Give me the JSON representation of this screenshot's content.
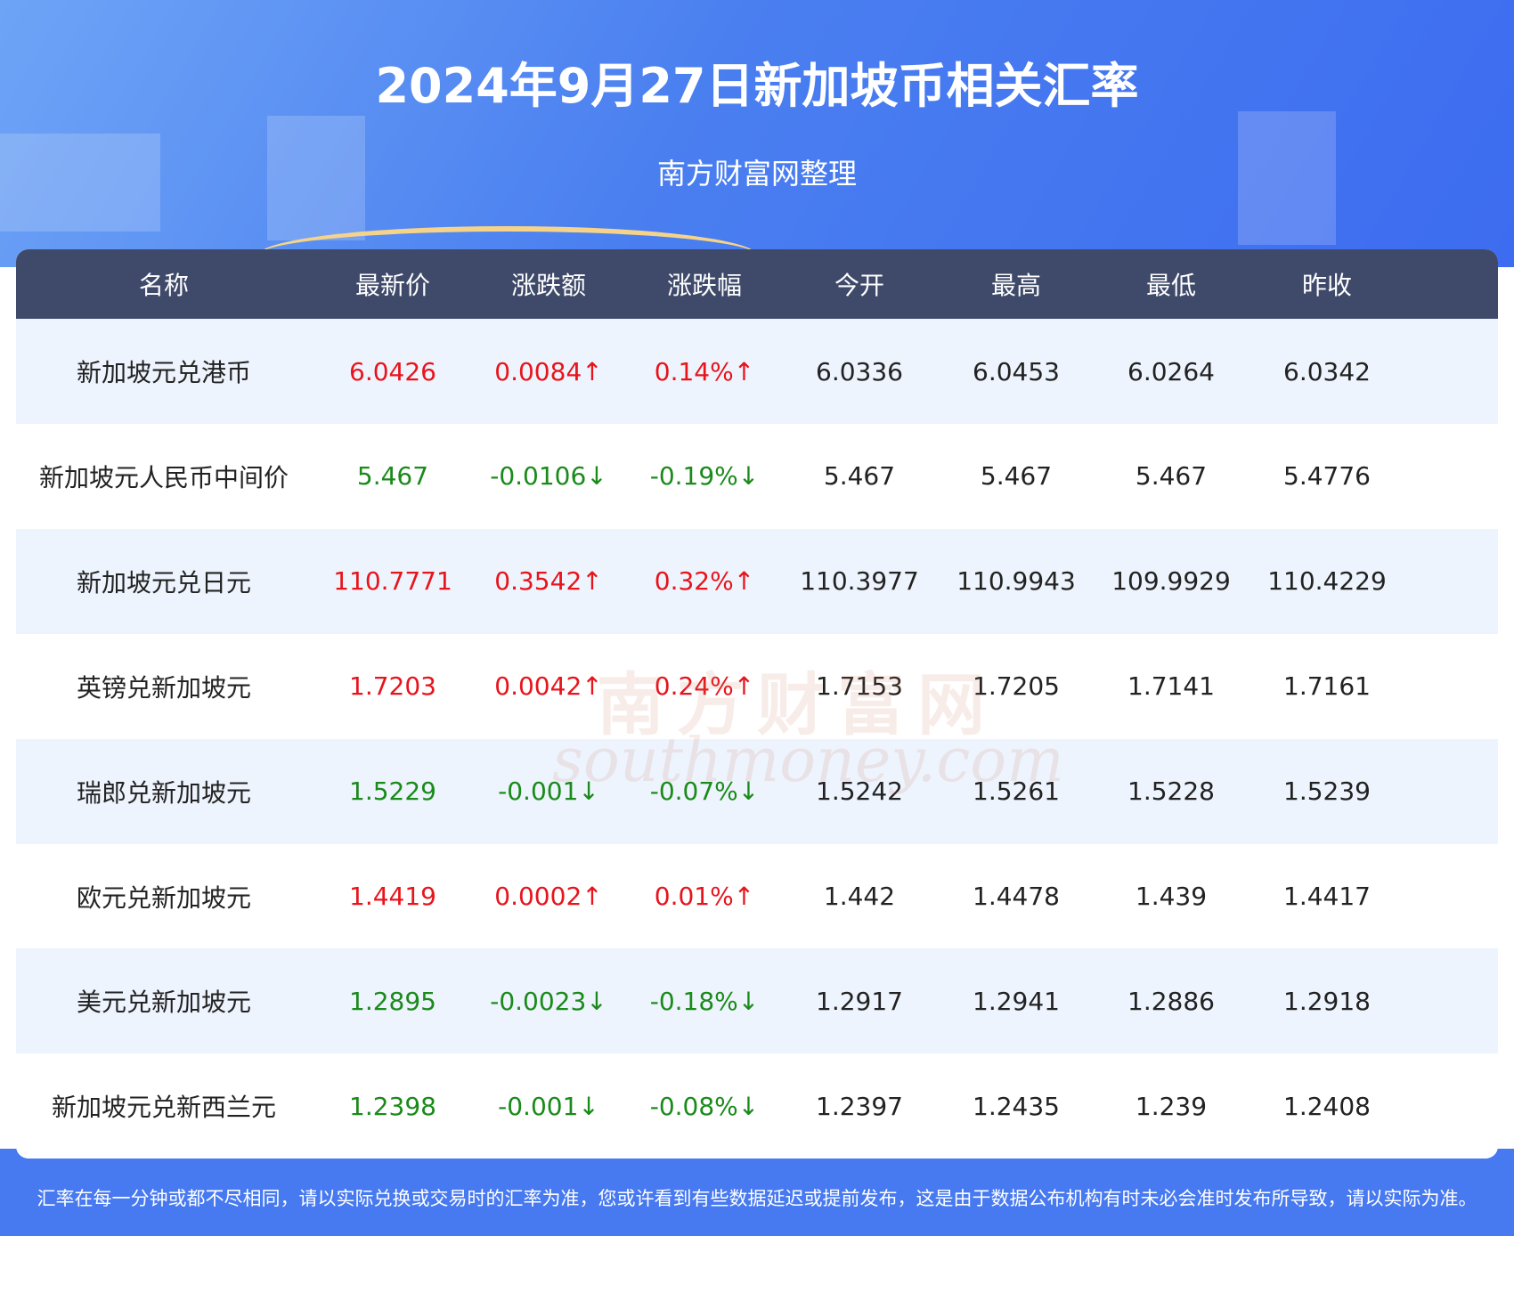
{
  "header": {
    "title": "2024年9月27日新加坡币相关汇率",
    "subtitle": "南方财富网整理"
  },
  "table": {
    "columns": [
      "名称",
      "最新价",
      "涨跌额",
      "涨跌幅",
      "今开",
      "最高",
      "最低",
      "昨收"
    ],
    "rows": [
      [
        "新加坡元兑港币",
        "6.0426",
        "0.0084↑",
        "0.14%↑",
        "6.0336",
        "6.0453",
        "6.0264",
        "6.0342"
      ],
      [
        "新加坡元人民币中间价",
        "5.467",
        "-0.0106↓",
        "-0.19%↓",
        "5.467",
        "5.467",
        "5.467",
        "5.4776"
      ],
      [
        "新加坡元兑日元",
        "110.7771",
        "0.3542↑",
        "0.32%↑",
        "110.3977",
        "110.9943",
        "109.9929",
        "110.4229"
      ],
      [
        "英镑兑新加坡元",
        "1.7203",
        "0.0042↑",
        "0.24%↑",
        "1.7153",
        "1.7205",
        "1.7141",
        "1.7161"
      ],
      [
        "瑞郎兑新加坡元",
        "1.5229",
        "-0.001↓",
        "-0.07%↓",
        "1.5242",
        "1.5261",
        "1.5228",
        "1.5239"
      ],
      [
        "欧元兑新加坡元",
        "1.4419",
        "0.0002↑",
        "0.01%↑",
        "1.442",
        "1.4478",
        "1.439",
        "1.4417"
      ],
      [
        "美元兑新加坡元",
        "1.2895",
        "-0.0023↓",
        "-0.18%↓",
        "1.2917",
        "1.2941",
        "1.2886",
        "1.2918"
      ],
      [
        "新加坡元兑新西兰元",
        "1.2398",
        "-0.001↓",
        "-0.08%↓",
        "1.2397",
        "1.2435",
        "1.239",
        "1.2408"
      ]
    ]
  },
  "watermark": {
    "brand": "南方财富网",
    "domain": "southmoney.com"
  },
  "footer": {
    "note": "汇率在每一分钟或都不尽相同，请以实际兑换或交易时的汇率为准，您或许看到有些数据延迟或提前发布，这是由于数据公布机构有时未必会准时发布所导致，请以实际为准。"
  }
}
